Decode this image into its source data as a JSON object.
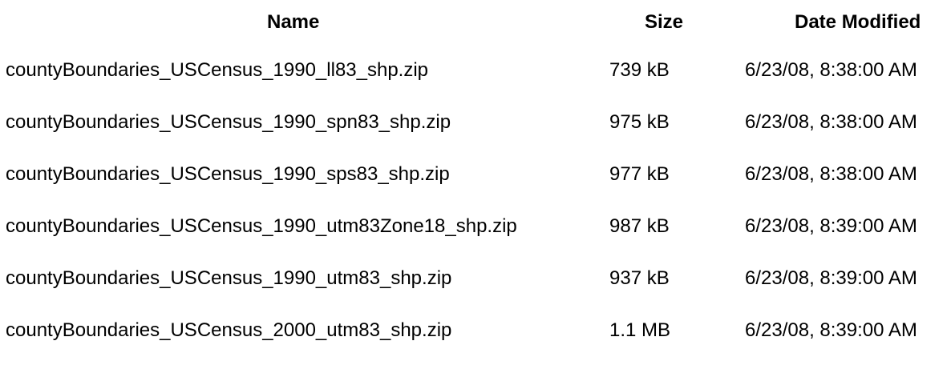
{
  "table": {
    "headers": {
      "name": "Name",
      "size": "Size",
      "date_modified": "Date Modified"
    },
    "rows": [
      {
        "name": "countyBoundaries_USCensus_1990_ll83_shp.zip",
        "size": "739 kB",
        "date": "6/23/08, 8:38:00 AM"
      },
      {
        "name": "countyBoundaries_USCensus_1990_spn83_shp.zip",
        "size": "975 kB",
        "date": "6/23/08, 8:38:00 AM"
      },
      {
        "name": "countyBoundaries_USCensus_1990_sps83_shp.zip",
        "size": "977 kB",
        "date": "6/23/08, 8:38:00 AM"
      },
      {
        "name": "countyBoundaries_USCensus_1990_utm83Zone18_shp.zip",
        "size": "987 kB",
        "date": "6/23/08, 8:39:00 AM"
      },
      {
        "name": "countyBoundaries_USCensus_1990_utm83_shp.zip",
        "size": "937 kB",
        "date": "6/23/08, 8:39:00 AM"
      },
      {
        "name": "countyBoundaries_USCensus_2000_utm83_shp.zip",
        "size": "1.1 MB",
        "date": "6/23/08, 8:39:00 AM"
      }
    ]
  }
}
